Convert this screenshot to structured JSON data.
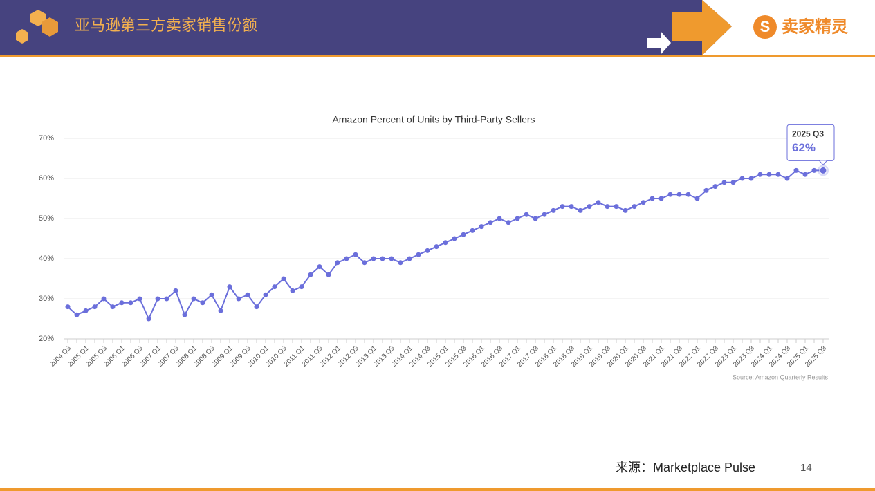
{
  "header": {
    "title": "亚马逊第三方卖家销售份额",
    "logo": "卖家精灵"
  },
  "footer": {
    "source": "来源：Marketplace Pulse",
    "page_number": 14
  },
  "chart_data": {
    "type": "line",
    "title": "Amazon Percent of Units by Third-Party Sellers",
    "source": "Source: Amazon Quarterly Results",
    "categories": [
      "2004 Q3",
      null,
      "2005 Q1",
      null,
      "2005 Q3",
      null,
      "2006 Q1",
      null,
      "2006 Q3",
      null,
      "2007 Q1",
      null,
      "2007 Q3",
      null,
      "2008 Q1",
      null,
      "2008 Q3",
      null,
      "2009 Q1",
      null,
      "2009 Q3",
      null,
      "2010 Q1",
      null,
      "2010 Q3",
      null,
      "2011 Q1",
      null,
      "2011 Q3",
      null,
      "2012 Q1",
      null,
      "2012 Q3",
      null,
      "2013 Q1",
      null,
      "2013 Q3",
      null,
      "2014 Q1",
      null,
      "2014 Q3",
      null,
      "2015 Q1",
      null,
      "2015 Q3",
      null,
      "2016 Q1",
      null,
      "2016 Q3",
      null,
      "2017 Q1",
      null,
      "2017 Q3",
      null,
      "2018 Q1",
      null,
      "2018 Q3",
      null,
      "2019 Q1",
      null,
      "2019 Q3",
      null,
      "2020 Q1",
      null,
      "2020 Q3",
      null,
      "2021 Q1",
      null,
      "2021 Q3",
      null,
      "2022 Q1",
      null,
      "2022 Q3",
      null,
      "2023 Q1",
      null,
      "2023 Q3",
      null,
      "2024 Q1",
      null,
      "2024 Q3",
      null,
      "2025 Q1",
      null,
      "2025 Q3"
    ],
    "series": [
      {
        "color": "#6b6fdb",
        "values": [
          28,
          26,
          27,
          28,
          30,
          28,
          29,
          29,
          30,
          25,
          30,
          30,
          32,
          26,
          30,
          29,
          31,
          27,
          33,
          30,
          31,
          28,
          31,
          33,
          35,
          32,
          33,
          36,
          38,
          36,
          39,
          40,
          41,
          39,
          40,
          40,
          40,
          39,
          40,
          41,
          42,
          43,
          44,
          45,
          46,
          47,
          48,
          49,
          50,
          49,
          50,
          51,
          50,
          51,
          52,
          53,
          53,
          52,
          53,
          54,
          53,
          53,
          52,
          53,
          54,
          55,
          55,
          56,
          56,
          56,
          55,
          57,
          58,
          59,
          59,
          60,
          60,
          61,
          61,
          61,
          60,
          62,
          61,
          62,
          62
        ]
      }
    ],
    "ylim": [
      20,
      70
    ],
    "yticks": [
      {
        "value": 20,
        "label": "20%"
      },
      {
        "value": 30,
        "label": "30%"
      },
      {
        "value": 40,
        "label": "40%"
      },
      {
        "value": 50,
        "label": "50%"
      },
      {
        "value": 60,
        "label": "60%"
      },
      {
        "value": 70,
        "label": "70%"
      }
    ],
    "grid": true,
    "tooltip": {
      "title": "2025 Q3",
      "label": "62%"
    }
  }
}
